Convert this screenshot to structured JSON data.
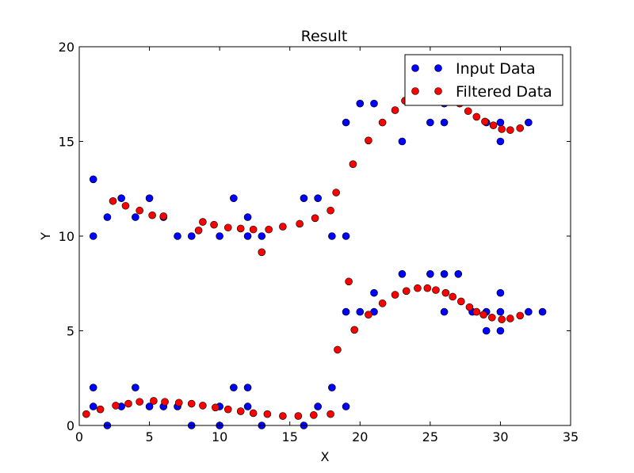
{
  "chart_data": {
    "type": "scatter",
    "title": "Result",
    "xlabel": "X",
    "ylabel": "Y",
    "xlim": [
      0,
      35
    ],
    "ylim": [
      0,
      20
    ],
    "xticks": [
      "0",
      "5",
      "10",
      "15",
      "20",
      "25",
      "30",
      "35"
    ],
    "yticks": [
      "0",
      "5",
      "10",
      "15",
      "20"
    ],
    "grid": false,
    "legend_position": "top-right",
    "series": [
      {
        "name": "Input Data",
        "color": "#0000ff",
        "points": [
          [
            1,
            13
          ],
          [
            1,
            10
          ],
          [
            1,
            2
          ],
          [
            1,
            1
          ],
          [
            2,
            11
          ],
          [
            2,
            0
          ],
          [
            3,
            12
          ],
          [
            3,
            1
          ],
          [
            4,
            11
          ],
          [
            4,
            2
          ],
          [
            5,
            12
          ],
          [
            5,
            1
          ],
          [
            6,
            11
          ],
          [
            6,
            1
          ],
          [
            7,
            10
          ],
          [
            7,
            1
          ],
          [
            8,
            10
          ],
          [
            8,
            0
          ],
          [
            10,
            10
          ],
          [
            10,
            1
          ],
          [
            10,
            0
          ],
          [
            11,
            12
          ],
          [
            11,
            2
          ],
          [
            12,
            11
          ],
          [
            12,
            10
          ],
          [
            12,
            2
          ],
          [
            12,
            1
          ],
          [
            13,
            10
          ],
          [
            13,
            0
          ],
          [
            16,
            12
          ],
          [
            16,
            0
          ],
          [
            17,
            12
          ],
          [
            17,
            1
          ],
          [
            18,
            10
          ],
          [
            18,
            2
          ],
          [
            19,
            16
          ],
          [
            19,
            10
          ],
          [
            19,
            6
          ],
          [
            19,
            1
          ],
          [
            20,
            17
          ],
          [
            20,
            6
          ],
          [
            21,
            17
          ],
          [
            21,
            7
          ],
          [
            21,
            6
          ],
          [
            23,
            15
          ],
          [
            23,
            8
          ],
          [
            25,
            16
          ],
          [
            25,
            8
          ],
          [
            26,
            17
          ],
          [
            26,
            16
          ],
          [
            26,
            8
          ],
          [
            26,
            6
          ],
          [
            27,
            8
          ],
          [
            28,
            6
          ],
          [
            29,
            16
          ],
          [
            29,
            6
          ],
          [
            29,
            5
          ],
          [
            30,
            16
          ],
          [
            30,
            15
          ],
          [
            30,
            7
          ],
          [
            30,
            6
          ],
          [
            30,
            5
          ],
          [
            32,
            16
          ],
          [
            32,
            6
          ],
          [
            33,
            6
          ]
        ]
      },
      {
        "name": "Filtered Data",
        "color": "#ff0000",
        "points": [
          [
            0.5,
            0.6
          ],
          [
            1.5,
            0.85
          ],
          [
            2.6,
            1.05
          ],
          [
            3.5,
            1.15
          ],
          [
            4.3,
            1.25
          ],
          [
            5.3,
            1.3
          ],
          [
            6.1,
            1.25
          ],
          [
            7.1,
            1.2
          ],
          [
            8.0,
            1.15
          ],
          [
            8.8,
            1.05
          ],
          [
            9.7,
            0.95
          ],
          [
            10.6,
            0.85
          ],
          [
            11.5,
            0.75
          ],
          [
            12.4,
            0.65
          ],
          [
            13.4,
            0.6
          ],
          [
            14.5,
            0.5
          ],
          [
            15.6,
            0.5
          ],
          [
            16.7,
            0.55
          ],
          [
            17.9,
            0.6
          ],
          [
            18.4,
            4.0
          ],
          [
            19.2,
            7.6
          ],
          [
            19.6,
            5.05
          ],
          [
            20.6,
            5.85
          ],
          [
            21.6,
            6.45
          ],
          [
            22.5,
            6.9
          ],
          [
            23.3,
            7.1
          ],
          [
            24.1,
            7.25
          ],
          [
            24.8,
            7.25
          ],
          [
            25.4,
            7.15
          ],
          [
            26.1,
            7.0
          ],
          [
            26.6,
            6.8
          ],
          [
            27.2,
            6.55
          ],
          [
            27.8,
            6.25
          ],
          [
            28.3,
            6.0
          ],
          [
            28.8,
            5.85
          ],
          [
            29.4,
            5.7
          ],
          [
            30.1,
            5.6
          ],
          [
            30.7,
            5.65
          ],
          [
            31.4,
            5.8
          ],
          [
            2.4,
            11.85
          ],
          [
            3.3,
            11.6
          ],
          [
            4.3,
            11.35
          ],
          [
            5.2,
            11.1
          ],
          [
            6.0,
            11.05
          ],
          [
            8.5,
            10.3
          ],
          [
            8.8,
            10.75
          ],
          [
            9.6,
            10.6
          ],
          [
            10.6,
            10.45
          ],
          [
            11.5,
            10.4
          ],
          [
            12.4,
            10.35
          ],
          [
            13.0,
            9.15
          ],
          [
            13.5,
            10.35
          ],
          [
            14.5,
            10.5
          ],
          [
            15.7,
            10.65
          ],
          [
            16.8,
            10.95
          ],
          [
            17.9,
            11.35
          ],
          [
            18.3,
            12.3
          ],
          [
            19.5,
            13.8
          ],
          [
            20.6,
            15.05
          ],
          [
            21.6,
            16.0
          ],
          [
            22.5,
            16.65
          ],
          [
            23.2,
            17.15
          ],
          [
            27.1,
            17.0
          ],
          [
            27.7,
            16.6
          ],
          [
            28.3,
            16.3
          ],
          [
            28.9,
            16.05
          ],
          [
            29.5,
            15.85
          ],
          [
            30.1,
            15.65
          ],
          [
            30.7,
            15.6
          ],
          [
            31.4,
            15.7
          ]
        ]
      }
    ]
  }
}
